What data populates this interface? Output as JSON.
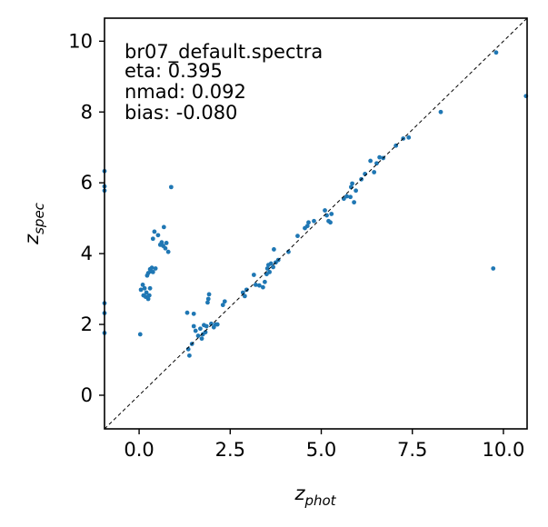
{
  "chart_data": {
    "type": "scatter",
    "title": "",
    "annotations": [
      "br07_default.spectra",
      "eta: 0.395",
      "nmad: 0.092",
      "bias: -0.080"
    ],
    "xlabel": {
      "base": "z",
      "sub": "phot"
    },
    "ylabel": {
      "base": "z",
      "sub": "spec"
    },
    "xlim": [
      -0.95,
      10.65
    ],
    "ylim": [
      -0.95,
      10.65
    ],
    "xticks": [
      0.0,
      2.5,
      5.0,
      7.5,
      10.0
    ],
    "xtick_labels": [
      "0.0",
      "2.5",
      "5.0",
      "7.5",
      "10.0"
    ],
    "yticks": [
      0,
      2,
      4,
      6,
      8,
      10
    ],
    "ytick_labels": [
      "0",
      "2",
      "4",
      "6",
      "8",
      "10"
    ],
    "reference_line": "y = x (dashed)",
    "grid": false,
    "legend": "none",
    "point_color": "#1f77b4",
    "points": [
      [
        -0.95,
        6.33
      ],
      [
        -0.95,
        5.9
      ],
      [
        -0.95,
        5.78
      ],
      [
        -0.95,
        2.6
      ],
      [
        -0.95,
        2.32
      ],
      [
        -0.95,
        1.76
      ],
      [
        0.03,
        1.72
      ],
      [
        0.05,
        2.98
      ],
      [
        0.1,
        3.12
      ],
      [
        0.12,
        2.82
      ],
      [
        0.15,
        3.02
      ],
      [
        0.18,
        2.78
      ],
      [
        0.2,
        2.9
      ],
      [
        0.22,
        3.38
      ],
      [
        0.25,
        3.45
      ],
      [
        0.25,
        2.72
      ],
      [
        0.28,
        2.82
      ],
      [
        0.3,
        3.02
      ],
      [
        0.3,
        3.56
      ],
      [
        0.32,
        3.5
      ],
      [
        0.35,
        3.6
      ],
      [
        0.38,
        3.48
      ],
      [
        0.45,
        3.58
      ],
      [
        0.38,
        4.42
      ],
      [
        0.42,
        4.62
      ],
      [
        0.52,
        4.52
      ],
      [
        0.58,
        4.25
      ],
      [
        0.62,
        4.32
      ],
      [
        0.66,
        4.22
      ],
      [
        0.68,
        4.75
      ],
      [
        0.72,
        4.15
      ],
      [
        0.75,
        4.3
      ],
      [
        0.8,
        4.05
      ],
      [
        0.88,
        5.88
      ],
      [
        1.32,
        2.33
      ],
      [
        1.35,
        1.3
      ],
      [
        1.38,
        1.12
      ],
      [
        1.45,
        1.45
      ],
      [
        1.5,
        2.3
      ],
      [
        1.5,
        1.95
      ],
      [
        1.55,
        1.82
      ],
      [
        1.62,
        1.68
      ],
      [
        1.68,
        1.88
      ],
      [
        1.72,
        1.6
      ],
      [
        1.75,
        1.72
      ],
      [
        1.78,
        1.98
      ],
      [
        1.82,
        1.78
      ],
      [
        1.85,
        1.95
      ],
      [
        1.88,
        2.62
      ],
      [
        1.9,
        2.72
      ],
      [
        1.92,
        2.85
      ],
      [
        1.98,
        2.02
      ],
      [
        2.05,
        1.92
      ],
      [
        2.1,
        2.0
      ],
      [
        2.15,
        2.0
      ],
      [
        2.3,
        2.55
      ],
      [
        2.35,
        2.65
      ],
      [
        2.85,
        2.9
      ],
      [
        2.9,
        2.8
      ],
      [
        2.95,
        2.98
      ],
      [
        3.15,
        3.4
      ],
      [
        3.2,
        3.12
      ],
      [
        3.3,
        3.1
      ],
      [
        3.4,
        3.05
      ],
      [
        3.45,
        3.2
      ],
      [
        3.5,
        3.42
      ],
      [
        3.52,
        3.58
      ],
      [
        3.55,
        3.68
      ],
      [
        3.58,
        3.48
      ],
      [
        3.62,
        3.72
      ],
      [
        3.68,
        3.62
      ],
      [
        3.7,
        4.12
      ],
      [
        3.75,
        3.75
      ],
      [
        3.82,
        3.82
      ],
      [
        4.1,
        4.05
      ],
      [
        4.35,
        4.5
      ],
      [
        4.55,
        4.72
      ],
      [
        4.62,
        4.78
      ],
      [
        4.65,
        4.88
      ],
      [
        4.8,
        4.92
      ],
      [
        5.1,
        5.22
      ],
      [
        5.15,
        5.08
      ],
      [
        5.2,
        4.92
      ],
      [
        5.25,
        4.88
      ],
      [
        5.28,
        5.12
      ],
      [
        5.62,
        5.55
      ],
      [
        5.7,
        5.62
      ],
      [
        5.8,
        5.6
      ],
      [
        5.82,
        5.88
      ],
      [
        5.85,
        5.98
      ],
      [
        5.9,
        5.45
      ],
      [
        5.95,
        5.78
      ],
      [
        6.1,
        6.1
      ],
      [
        6.2,
        6.25
      ],
      [
        6.35,
        6.62
      ],
      [
        6.45,
        6.3
      ],
      [
        6.52,
        6.55
      ],
      [
        6.6,
        6.72
      ],
      [
        6.7,
        6.7
      ],
      [
        7.05,
        7.05
      ],
      [
        7.25,
        7.25
      ],
      [
        7.4,
        7.28
      ],
      [
        8.28,
        8.0
      ],
      [
        9.72,
        3.58
      ],
      [
        9.8,
        9.68
      ],
      [
        10.62,
        8.45
      ]
    ]
  }
}
